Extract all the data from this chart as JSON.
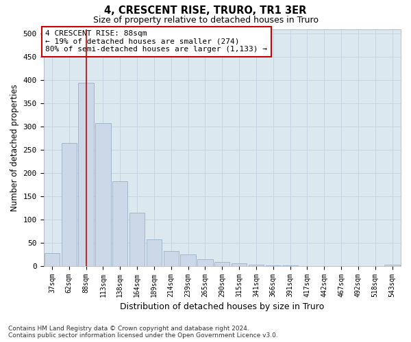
{
  "title": "4, CRESCENT RISE, TRURO, TR1 3ER",
  "subtitle": "Size of property relative to detached houses in Truro",
  "xlabel": "Distribution of detached houses by size in Truro",
  "ylabel": "Number of detached properties",
  "categories": [
    "37sqm",
    "62sqm",
    "88sqm",
    "113sqm",
    "138sqm",
    "164sqm",
    "189sqm",
    "214sqm",
    "239sqm",
    "265sqm",
    "290sqm",
    "315sqm",
    "341sqm",
    "366sqm",
    "391sqm",
    "417sqm",
    "442sqm",
    "467sqm",
    "492sqm",
    "518sqm",
    "543sqm"
  ],
  "values": [
    28,
    265,
    395,
    308,
    182,
    115,
    57,
    32,
    25,
    14,
    8,
    5,
    2,
    1,
    1,
    0,
    0,
    0,
    0,
    0,
    3
  ],
  "bar_color": "#ccd8e8",
  "bar_edge_color": "#9ab0c8",
  "red_line_x": 2,
  "annotation_text": "4 CRESCENT RISE: 88sqm\n← 19% of detached houses are smaller (274)\n80% of semi-detached houses are larger (1,133) →",
  "annotation_box_color": "#ffffff",
  "annotation_box_edge_color": "#cc0000",
  "ylim": [
    0,
    510
  ],
  "yticks": [
    0,
    50,
    100,
    150,
    200,
    250,
    300,
    350,
    400,
    450,
    500
  ],
  "grid_color": "#c8d4e4",
  "background_color": "#dce8f0",
  "fig_background": "#ffffff",
  "footer_line1": "Contains HM Land Registry data © Crown copyright and database right 2024.",
  "footer_line2": "Contains public sector information licensed under the Open Government Licence v3.0."
}
